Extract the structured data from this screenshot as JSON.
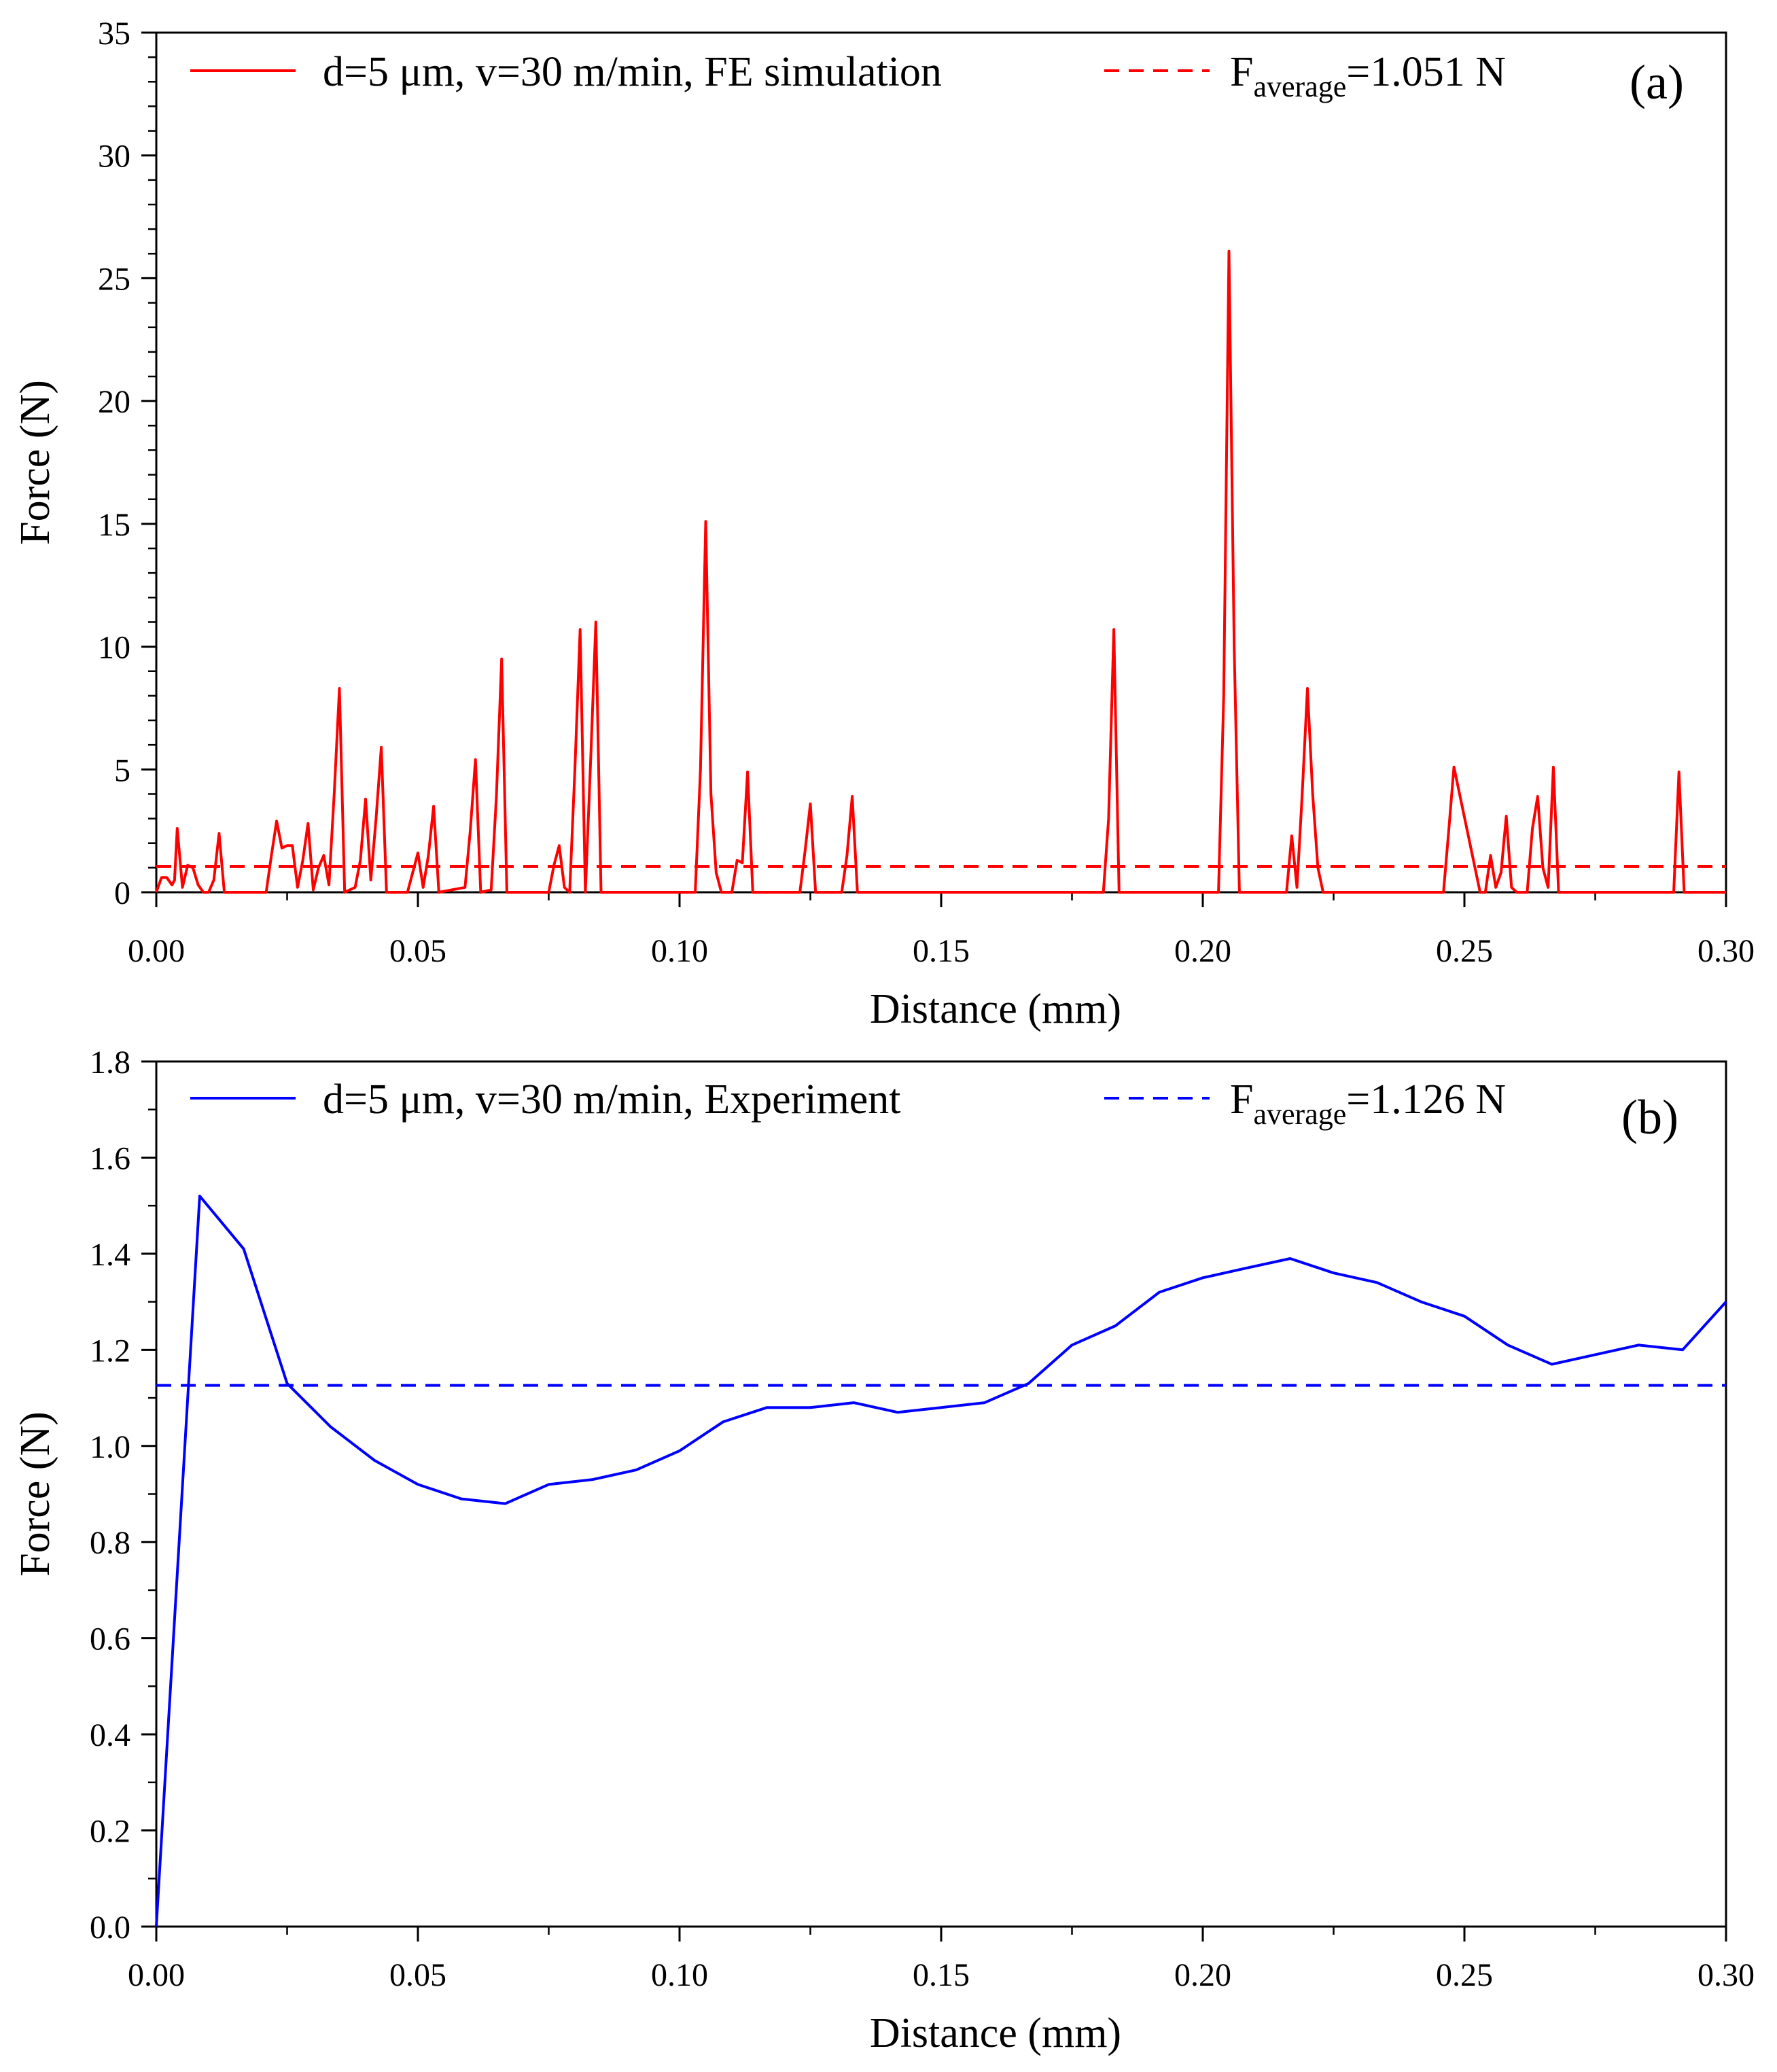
{
  "chart_data": [
    {
      "id": "a",
      "type": "line",
      "panel_label": "(a)",
      "xlabel": "Distance (mm)",
      "ylabel": "Force (N)",
      "xlim": [
        0,
        0.3
      ],
      "ylim": [
        0,
        35
      ],
      "xticks": [
        0,
        0.05,
        0.1,
        0.15,
        0.2,
        0.25,
        0.3
      ],
      "xtick_labels": [
        "0.00",
        "0.05",
        "0.10",
        "0.15",
        "0.20",
        "0.25",
        "0.30"
      ],
      "yticks": [
        0,
        5,
        10,
        15,
        20,
        25,
        30,
        35
      ],
      "ytick_labels": [
        "0",
        "5",
        "10",
        "15",
        "20",
        "25",
        "30",
        "35"
      ],
      "legend_position": "top",
      "color": "#ff0000",
      "series": [
        {
          "name": "d=5 μm, v=30 m/min, FE simulation",
          "style": "solid",
          "x": [
            0.0,
            0.001,
            0.002,
            0.003,
            0.0035,
            0.004,
            0.005,
            0.006,
            0.007,
            0.008,
            0.009,
            0.01,
            0.011,
            0.012,
            0.013,
            0.021,
            0.022,
            0.023,
            0.024,
            0.025,
            0.026,
            0.027,
            0.028,
            0.029,
            0.03,
            0.031,
            0.032,
            0.033,
            0.034,
            0.035,
            0.036,
            0.038,
            0.039,
            0.04,
            0.041,
            0.042,
            0.043,
            0.044,
            0.048,
            0.05,
            0.051,
            0.052,
            0.053,
            0.054,
            0.059,
            0.06,
            0.061,
            0.062,
            0.064,
            0.065,
            0.066,
            0.067,
            0.075,
            0.076,
            0.077,
            0.078,
            0.079,
            0.08,
            0.081,
            0.082,
            0.083,
            0.084,
            0.085,
            0.086,
            0.103,
            0.104,
            0.105,
            0.106,
            0.107,
            0.108,
            0.11,
            0.111,
            0.112,
            0.113,
            0.114,
            0.123,
            0.124,
            0.125,
            0.126,
            0.131,
            0.132,
            0.133,
            0.134,
            0.181,
            0.182,
            0.183,
            0.184,
            0.203,
            0.204,
            0.205,
            0.206,
            0.207,
            0.215,
            0.216,
            0.217,
            0.218,
            0.219,
            0.22,
            0.221,
            0.222,
            0.223,
            0.245,
            0.246,
            0.247,
            0.248,
            0.253,
            0.254,
            0.255,
            0.256,
            0.257,
            0.258,
            0.259,
            0.26,
            0.262,
            0.263,
            0.264,
            0.265,
            0.266,
            0.267,
            0.268,
            0.269,
            0.29,
            0.291,
            0.292,
            0.3
          ],
          "y": [
            0,
            0.6,
            0.6,
            0.3,
            0.5,
            2.6,
            0.2,
            1.1,
            1.0,
            0.3,
            0,
            0,
            0.5,
            2.4,
            0,
            0,
            1.5,
            2.9,
            1.8,
            1.9,
            1.9,
            0.2,
            1.3,
            2.8,
            0.1,
            1.0,
            1.5,
            0.3,
            4.0,
            8.3,
            0,
            0.2,
            1.3,
            3.8,
            0.5,
            3.0,
            5.9,
            0,
            0,
            1.6,
            0.2,
            1.5,
            3.5,
            0,
            0.2,
            2.5,
            5.4,
            0,
            0.1,
            3.9,
            9.5,
            0,
            0,
            1.1,
            1.9,
            0.2,
            0,
            5.0,
            10.7,
            0,
            5.3,
            11.0,
            0,
            0,
            0,
            5.0,
            15.1,
            4.0,
            0.8,
            0,
            0,
            1.3,
            1.2,
            4.9,
            0,
            0,
            1.7,
            3.6,
            0,
            0,
            1.5,
            3.9,
            0,
            0,
            3.0,
            10.7,
            0,
            0,
            8.0,
            26.1,
            10.0,
            0,
            0,
            0,
            2.3,
            0.2,
            4.0,
            8.3,
            4.0,
            1.0,
            0,
            0,
            0,
            2.5,
            5.1,
            0,
            0,
            1.5,
            0.2,
            0.8,
            3.1,
            0.2,
            0,
            0,
            2.6,
            3.9,
            1.0,
            0.2,
            5.1,
            0,
            0,
            0,
            4.9,
            0,
            0
          ]
        },
        {
          "name": "F",
          "subscript": "average",
          "value_text": "=1.051 N",
          "style": "dashed",
          "y_const": 1.051
        }
      ]
    },
    {
      "id": "b",
      "type": "line",
      "panel_label": "(b)",
      "xlabel": "Distance (mm)",
      "ylabel": "Force (N)",
      "xlim": [
        0,
        0.3
      ],
      "ylim": [
        0,
        1.8
      ],
      "xticks": [
        0,
        0.05,
        0.1,
        0.15,
        0.2,
        0.25,
        0.3
      ],
      "xtick_labels": [
        "0.00",
        "0.05",
        "0.10",
        "0.15",
        "0.20",
        "0.25",
        "0.30"
      ],
      "yticks": [
        0,
        0.2,
        0.4,
        0.6,
        0.8,
        1.0,
        1.2,
        1.4,
        1.6,
        1.8
      ],
      "ytick_labels": [
        "0.0",
        "0.2",
        "0.4",
        "0.6",
        "0.8",
        "1.0",
        "1.2",
        "1.4",
        "1.6",
        "1.8"
      ],
      "legend_position": "top",
      "color": "#0000ff",
      "series": [
        {
          "name": "d=5 μm, v=30 m/min, Experiment",
          "style": "solid",
          "x": [
            0.0,
            0.0083,
            0.0167,
            0.025,
            0.0333,
            0.0417,
            0.05,
            0.0583,
            0.0667,
            0.075,
            0.0833,
            0.0917,
            0.1,
            0.1083,
            0.1167,
            0.125,
            0.1333,
            0.1417,
            0.15,
            0.1583,
            0.1667,
            0.175,
            0.1833,
            0.1917,
            0.2,
            0.2083,
            0.2167,
            0.225,
            0.2333,
            0.2417,
            0.25,
            0.2583,
            0.2667,
            0.275,
            0.2833,
            0.2917,
            0.3
          ],
          "y": [
            0.0,
            1.52,
            1.41,
            1.13,
            1.04,
            0.97,
            0.92,
            0.89,
            0.88,
            0.92,
            0.93,
            0.95,
            0.99,
            1.05,
            1.08,
            1.08,
            1.09,
            1.07,
            1.08,
            1.09,
            1.13,
            1.21,
            1.25,
            1.32,
            1.35,
            1.37,
            1.39,
            1.36,
            1.34,
            1.3,
            1.27,
            1.21,
            1.17,
            1.19,
            1.21,
            1.2,
            1.3
          ]
        },
        {
          "name": "F",
          "subscript": "average",
          "value_text": "=1.126 N",
          "style": "dashed",
          "y_const": 1.126
        }
      ]
    }
  ]
}
